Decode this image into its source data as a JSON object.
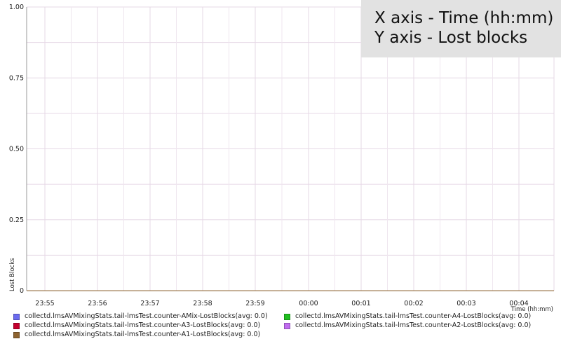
{
  "info_box": {
    "line1": "X axis - Time (hh:mm)",
    "line2": "Y axis - Lost blocks"
  },
  "chart_data": {
    "type": "line",
    "title": "",
    "xlabel": "Time (hh:mm)",
    "ylabel": "Lost Blocks",
    "x_tick_labels": [
      "23:55",
      "23:56",
      "23:57",
      "23:58",
      "23:59",
      "00:00",
      "00:01",
      "00:02",
      "00:03",
      "00:04"
    ],
    "y_tick_labels": [
      "0",
      "0.25",
      "0.50",
      "0.75",
      "1.00"
    ],
    "y_ticks": [
      0,
      0.25,
      0.5,
      0.75,
      1.0
    ],
    "ylim": [
      0,
      1.0
    ],
    "grid": true,
    "legend_placement": "bottom",
    "series": [
      {
        "name": "collectd.lmsAVMixingStats.tail-lmsTest.counter-AMix-LostBlocks(avg: 0.0)",
        "color": "#6b6bf0",
        "values": [
          0,
          0,
          0,
          0,
          0,
          0,
          0,
          0,
          0,
          0
        ]
      },
      {
        "name": "collectd.lmsAVMixingStats.tail-lmsTest.counter-A4-LostBlocks(avg: 0.0)",
        "color": "#1fbf1f",
        "values": [
          0,
          0,
          0,
          0,
          0,
          0,
          0,
          0,
          0,
          0
        ]
      },
      {
        "name": "collectd.lmsAVMixingStats.tail-lmsTest.counter-A3-LostBlocks(avg: 0.0)",
        "color": "#c4002e",
        "values": [
          0,
          0,
          0,
          0,
          0,
          0,
          0,
          0,
          0,
          0
        ]
      },
      {
        "name": "collectd.lmsAVMixingStats.tail-lmsTest.counter-A2-LostBlocks(avg: 0.0)",
        "color": "#c16cf0",
        "values": [
          0,
          0,
          0,
          0,
          0,
          0,
          0,
          0,
          0,
          0
        ]
      },
      {
        "name": "collectd.lmsAVMixingStats.tail-lmsTest.counter-A1-LostBlocks(avg: 0.0)",
        "color": "#8e6330",
        "values": [
          0,
          0,
          0,
          0,
          0,
          0,
          0,
          0,
          0,
          0
        ]
      }
    ]
  }
}
